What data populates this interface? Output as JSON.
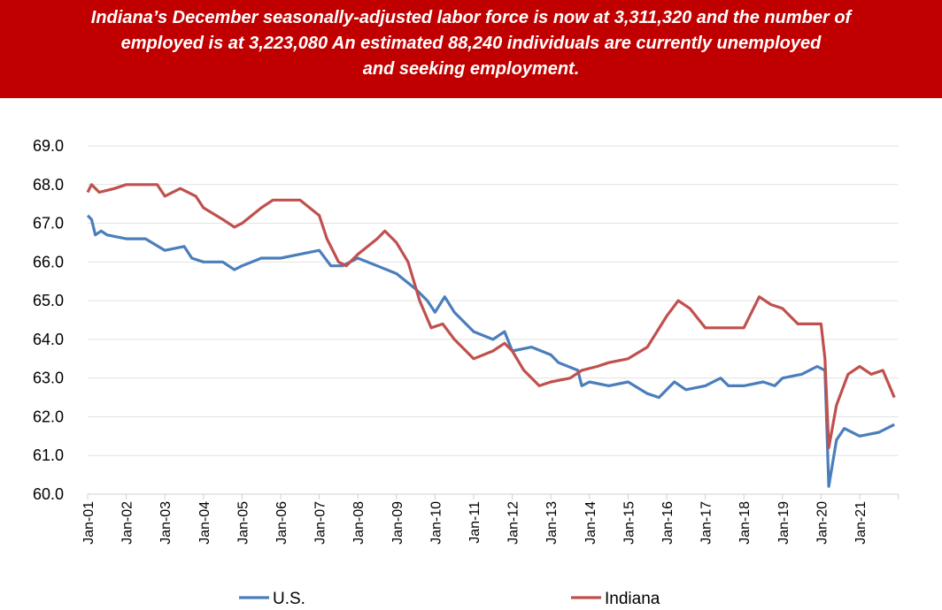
{
  "header": {
    "line1": "Indiana’s December seasonally-adjusted labor force is now at 3,311,320 and the number of",
    "line2": "employed is at 3,223,080 An estimated 88,240 individuals are currently unemployed",
    "line3": "and seeking employment."
  },
  "chart_data": {
    "type": "line",
    "title": "",
    "xlabel": "",
    "ylabel": "",
    "ylim": [
      60.0,
      69.0
    ],
    "yticks": [
      "60.0",
      "61.0",
      "62.0",
      "63.0",
      "64.0",
      "65.0",
      "66.0",
      "67.0",
      "68.0",
      "69.0"
    ],
    "xlim": [
      2001.0,
      2022.0
    ],
    "xticks": [
      "Jan-01",
      "Jan-02",
      "Jan-03",
      "Jan-04",
      "Jan-05",
      "Jan-06",
      "Jan-07",
      "Jan-08",
      "Jan-09",
      "Jan-10",
      "Jan-11",
      "Jan-12",
      "Jan-13",
      "Jan-14",
      "Jan-15",
      "Jan-16",
      "Jan-17",
      "Jan-18",
      "Jan-19",
      "Jan-20",
      "Jan-21"
    ],
    "grid": true,
    "legend_position": "bottom",
    "colors": {
      "U.S.": "#4a7ebb",
      "Indiana": "#c0504d"
    },
    "series": [
      {
        "name": "U.S.",
        "x": [
          2001.0,
          2001.1,
          2001.2,
          2001.35,
          2001.5,
          2002.0,
          2002.5,
          2003.0,
          2003.5,
          2003.7,
          2004.0,
          2004.5,
          2004.8,
          2005.0,
          2005.5,
          2006.0,
          2006.5,
          2007.0,
          2007.3,
          2007.6,
          2008.0,
          2008.5,
          2009.0,
          2009.5,
          2009.8,
          2010.0,
          2010.25,
          2010.5,
          2010.8,
          2011.0,
          2011.5,
          2011.8,
          2012.0,
          2012.5,
          2013.0,
          2013.2,
          2013.7,
          2013.8,
          2014.0,
          2014.5,
          2015.0,
          2015.5,
          2015.8,
          2016.0,
          2016.2,
          2016.5,
          2017.0,
          2017.4,
          2017.6,
          2018.0,
          2018.5,
          2018.8,
          2019.0,
          2019.5,
          2019.9,
          2020.1,
          2020.2,
          2020.4,
          2020.6,
          2021.0,
          2021.5,
          2021.9
        ],
        "values": [
          67.2,
          67.1,
          66.7,
          66.8,
          66.7,
          66.6,
          66.6,
          66.3,
          66.4,
          66.1,
          66.0,
          66.0,
          65.8,
          65.9,
          66.1,
          66.1,
          66.2,
          66.3,
          65.9,
          65.9,
          66.1,
          65.9,
          65.7,
          65.3,
          65.0,
          64.7,
          65.1,
          64.7,
          64.4,
          64.2,
          64.0,
          64.2,
          63.7,
          63.8,
          63.6,
          63.4,
          63.2,
          62.8,
          62.9,
          62.8,
          62.9,
          62.6,
          62.5,
          62.7,
          62.9,
          62.7,
          62.8,
          63.0,
          62.8,
          62.8,
          62.9,
          62.8,
          63.0,
          63.1,
          63.3,
          63.2,
          60.2,
          61.4,
          61.7,
          61.5,
          61.6,
          61.8
        ]
      },
      {
        "name": "Indiana",
        "x": [
          2001.0,
          2001.1,
          2001.3,
          2001.7,
          2002.0,
          2002.8,
          2003.0,
          2003.4,
          2003.8,
          2004.0,
          2004.5,
          2004.8,
          2005.0,
          2005.5,
          2005.8,
          2006.5,
          2007.0,
          2007.2,
          2007.5,
          2007.7,
          2008.0,
          2008.5,
          2008.7,
          2009.0,
          2009.3,
          2009.6,
          2009.9,
          2010.2,
          2010.5,
          2011.0,
          2011.5,
          2011.8,
          2012.0,
          2012.3,
          2012.7,
          2013.0,
          2013.5,
          2013.8,
          2014.2,
          2014.5,
          2015.0,
          2015.5,
          2016.0,
          2016.3,
          2016.6,
          2017.0,
          2017.5,
          2018.0,
          2018.4,
          2018.7,
          2019.0,
          2019.4,
          2019.7,
          2020.0,
          2020.1,
          2020.2,
          2020.4,
          2020.7,
          2021.0,
          2021.3,
          2021.6,
          2021.9
        ],
        "values": [
          67.8,
          68.0,
          67.8,
          67.9,
          68.0,
          68.0,
          67.7,
          67.9,
          67.7,
          67.4,
          67.1,
          66.9,
          67.0,
          67.4,
          67.6,
          67.6,
          67.2,
          66.6,
          66.0,
          65.9,
          66.2,
          66.6,
          66.8,
          66.5,
          66.0,
          65.0,
          64.3,
          64.4,
          64.0,
          63.5,
          63.7,
          63.9,
          63.7,
          63.2,
          62.8,
          62.9,
          63.0,
          63.2,
          63.3,
          63.4,
          63.5,
          63.8,
          64.6,
          65.0,
          64.8,
          64.3,
          64.3,
          64.3,
          65.1,
          64.9,
          64.8,
          64.4,
          64.4,
          64.4,
          63.5,
          61.2,
          62.3,
          63.1,
          63.3,
          63.1,
          63.2,
          62.5
        ]
      }
    ]
  }
}
